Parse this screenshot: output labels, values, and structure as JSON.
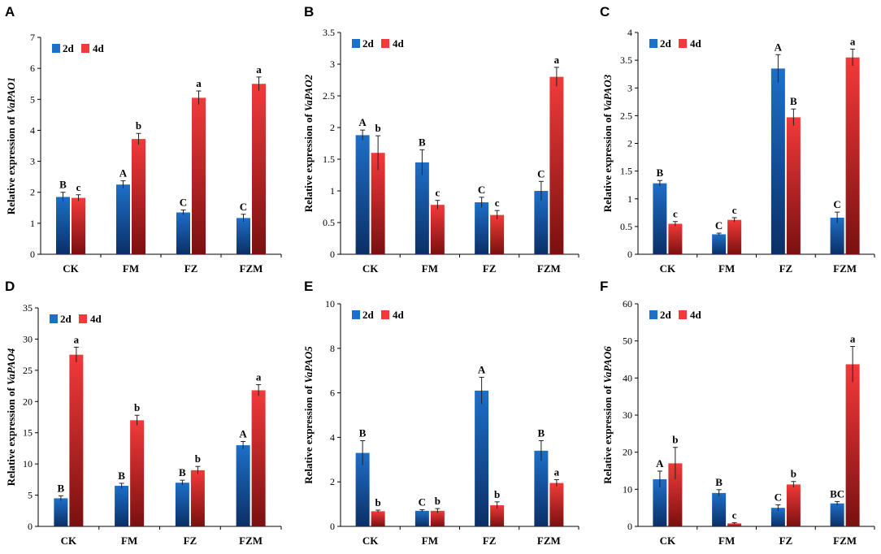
{
  "legend": [
    "2d",
    "4d"
  ],
  "colors": {
    "s2d": "#1e6fc8",
    "s2d_dark": "#0b2f66",
    "s4d": "#f23a3a",
    "s4d_dark": "#7a1010"
  },
  "chart_data": [
    {
      "type": "bar",
      "panel": "A",
      "ylabel_prefix": "Relative expression of ",
      "gene": "VaPAO1",
      "categories": [
        "CK",
        "FM",
        "FZ",
        "FZM"
      ],
      "ylim": [
        0,
        7
      ],
      "yticks": [
        0,
        1,
        2,
        3,
        4,
        5,
        6,
        7
      ],
      "series": [
        {
          "name": "2d",
          "values": [
            1.85,
            2.25,
            1.35,
            1.17
          ],
          "errors": [
            0.15,
            0.12,
            0.08,
            0.12
          ],
          "labels": [
            "B",
            "A",
            "C",
            "C"
          ]
        },
        {
          "name": "4d",
          "values": [
            1.82,
            3.72,
            5.05,
            5.5
          ],
          "errors": [
            0.1,
            0.18,
            0.22,
            0.22
          ],
          "labels": [
            "c",
            "b",
            "a",
            "a"
          ]
        }
      ]
    },
    {
      "type": "bar",
      "panel": "B",
      "ylabel_prefix": "Relative expression of ",
      "gene": "VaPAO2",
      "categories": [
        "CK",
        "FM",
        "FZ",
        "FZM"
      ],
      "ylim": [
        0,
        3.5
      ],
      "yticks": [
        0,
        0.5,
        1,
        1.5,
        2,
        2.5,
        3,
        3.5
      ],
      "series": [
        {
          "name": "2d",
          "values": [
            1.88,
            1.45,
            0.82,
            1.0
          ],
          "errors": [
            0.08,
            0.2,
            0.08,
            0.15
          ],
          "labels": [
            "A",
            "B",
            "C",
            "C"
          ]
        },
        {
          "name": "4d",
          "values": [
            1.6,
            0.78,
            0.62,
            2.8
          ],
          "errors": [
            0.27,
            0.07,
            0.07,
            0.15
          ],
          "labels": [
            "b",
            "c",
            "c",
            "a"
          ]
        }
      ]
    },
    {
      "type": "bar",
      "panel": "C",
      "ylabel_prefix": "Relative expression of ",
      "gene": "VaPAO3",
      "categories": [
        "CK",
        "FM",
        "FZ",
        "FZM"
      ],
      "ylim": [
        0,
        4
      ],
      "yticks": [
        0,
        0.5,
        1,
        1.5,
        2,
        2.5,
        3,
        3.5,
        4
      ],
      "series": [
        {
          "name": "2d",
          "values": [
            1.28,
            0.36,
            3.35,
            0.66
          ],
          "errors": [
            0.05,
            0.02,
            0.25,
            0.1
          ],
          "labels": [
            "B",
            "C",
            "A",
            "C"
          ]
        },
        {
          "name": "4d",
          "values": [
            0.55,
            0.62,
            2.47,
            3.55
          ],
          "errors": [
            0.04,
            0.04,
            0.15,
            0.15
          ],
          "labels": [
            "c",
            "c",
            "B",
            "a"
          ]
        }
      ]
    },
    {
      "type": "bar",
      "panel": "D",
      "ylabel_prefix": "Relative expression of ",
      "gene": "VaPAO4",
      "categories": [
        "CK",
        "FM",
        "FZ",
        "FZM"
      ],
      "ylim": [
        0,
        35
      ],
      "yticks": [
        0,
        5,
        10,
        15,
        20,
        25,
        30,
        35
      ],
      "series": [
        {
          "name": "2d",
          "values": [
            4.5,
            6.5,
            7.0,
            13.0
          ],
          "errors": [
            0.4,
            0.4,
            0.4,
            0.6
          ],
          "labels": [
            "B",
            "B",
            "B",
            "A"
          ]
        },
        {
          "name": "4d",
          "values": [
            27.5,
            17.0,
            9.0,
            21.8
          ],
          "errors": [
            1.2,
            0.8,
            0.6,
            0.9
          ],
          "labels": [
            "a",
            "b",
            "b",
            "a"
          ]
        }
      ]
    },
    {
      "type": "bar",
      "panel": "E",
      "ylabel_prefix": "Relative expression of ",
      "gene": "VaPAO5",
      "categories": [
        "CK",
        "FM",
        "FZ",
        "FZM"
      ],
      "ylim": [
        0,
        10
      ],
      "yticks": [
        0,
        2,
        4,
        6,
        8,
        10
      ],
      "series": [
        {
          "name": "2d",
          "values": [
            3.3,
            0.7,
            6.1,
            3.4
          ],
          "errors": [
            0.55,
            0.05,
            0.6,
            0.45
          ],
          "labels": [
            "B",
            "C",
            "A",
            "B"
          ]
        },
        {
          "name": "4d",
          "values": [
            0.68,
            0.7,
            0.95,
            1.95
          ],
          "errors": [
            0.05,
            0.1,
            0.15,
            0.15
          ],
          "labels": [
            "b",
            "b",
            "b",
            "a"
          ]
        }
      ]
    },
    {
      "type": "bar",
      "panel": "F",
      "ylabel_prefix": "Relative expression of ",
      "gene": "VaPAO6",
      "categories": [
        "CK",
        "FM",
        "FZ",
        "FZM"
      ],
      "ylim": [
        0,
        60
      ],
      "yticks": [
        0,
        10,
        20,
        30,
        40,
        50,
        60
      ],
      "series": [
        {
          "name": "2d",
          "values": [
            12.7,
            9.0,
            5.0,
            6.2
          ],
          "errors": [
            2.2,
            0.9,
            0.8,
            0.5
          ],
          "labels": [
            "A",
            "B",
            "C",
            "BC"
          ]
        },
        {
          "name": "4d",
          "values": [
            17.0,
            0.8,
            11.3,
            43.7
          ],
          "errors": [
            4.3,
            0.2,
            0.8,
            4.8
          ],
          "labels": [
            "b",
            "c",
            "b",
            "a"
          ]
        }
      ]
    }
  ]
}
